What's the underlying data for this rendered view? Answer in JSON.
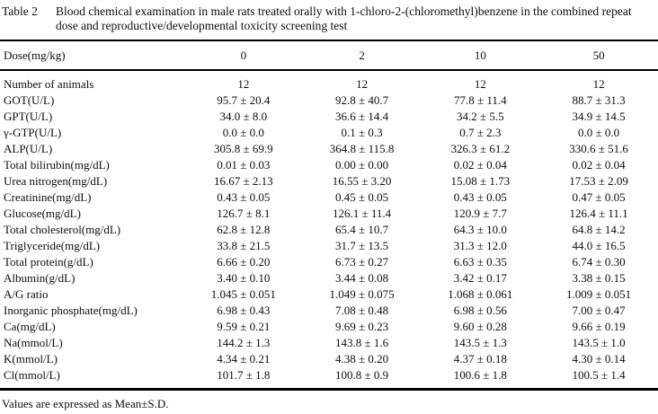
{
  "table": {
    "label": "Table 2",
    "caption": "Blood chemical examination in male rats treated orally with 1-chloro-2-(chloromethyl)benzene in the combined repeat dose and reproductive/developmental toxicity screening test",
    "header": {
      "label": "Dose(mg/kg)",
      "columns": [
        "0",
        "2",
        "10",
        "50"
      ]
    },
    "rows": [
      {
        "label": "Number of animals",
        "values": [
          "12",
          "12",
          "12",
          "12"
        ]
      },
      {
        "label": "GOT(U/L)",
        "values": [
          "95.7 ± 20.4",
          "92.8 ± 40.7",
          "77.8 ± 11.4",
          "88.7 ± 31.3"
        ]
      },
      {
        "label": "GPT(U/L)",
        "values": [
          "34.0 ± 8.0",
          "36.6 ± 14.4",
          "34.2 ± 5.5",
          "34.9 ± 14.5"
        ]
      },
      {
        "label": "γ-GTP(U/L)",
        "values": [
          "0.0 ± 0.0",
          "0.1 ± 0.3",
          "0.7 ± 2.3",
          "0.0 ± 0.0"
        ]
      },
      {
        "label": "ALP(U/L)",
        "values": [
          "305.8 ± 69.9",
          "364.8 ± 115.8",
          "326.3 ± 61.2",
          "330.6 ± 51.6"
        ]
      },
      {
        "label": "Total bilirubin(mg/dL)",
        "values": [
          "0.01 ± 0.03",
          "0.00 ± 0.00",
          "0.02 ± 0.04",
          "0.02 ± 0.04"
        ]
      },
      {
        "label": "Urea nitrogen(mg/dL)",
        "values": [
          "16.67 ± 2.13",
          "16.55 ± 3.20",
          "15.08 ± 1.73",
          "17.53 ± 2.09"
        ]
      },
      {
        "label": "Creatinine(mg/dL)",
        "values": [
          "0.43 ± 0.05",
          "0.45 ± 0.05",
          "0.43 ± 0.05",
          "0.47 ± 0.05"
        ]
      },
      {
        "label": "Glucose(mg/dL)",
        "values": [
          "126.7 ± 8.1",
          "126.1 ± 11.4",
          "120.9 ± 7.7",
          "126.4 ± 11.1"
        ]
      },
      {
        "label": "Total cholesterol(mg/dL)",
        "values": [
          "62.8 ± 12.8",
          "65.4 ± 10.7",
          "64.3 ± 10.0",
          "64.8 ± 14.2"
        ]
      },
      {
        "label": "Triglyceride(mg/dL)",
        "values": [
          "33.8 ± 21.5",
          "31.7 ± 13.5",
          "31.3 ± 12.0",
          "44.0 ± 16.5"
        ]
      },
      {
        "label": "Total protein(g/dL)",
        "values": [
          "6.66 ± 0.20",
          "6.73 ± 0.27",
          "6.63 ± 0.35",
          "6.74 ± 0.30"
        ]
      },
      {
        "label": "Albumin(g/dL)",
        "values": [
          "3.40 ± 0.10",
          "3.44 ± 0.08",
          "3.42 ± 0.17",
          "3.38 ± 0.15"
        ]
      },
      {
        "label": "A/G ratio",
        "values": [
          "1.045 ± 0.051",
          "1.049 ± 0.075",
          "1.068 ± 0.061",
          "1.009 ± 0.051"
        ]
      },
      {
        "label": "Inorganic phosphate(mg/dL)",
        "values": [
          "6.98 ± 0.43",
          "7.08 ± 0.48",
          "6.98 ± 0.56",
          "7.00 ± 0.47"
        ]
      },
      {
        "label": "Ca(mg/dL)",
        "values": [
          "9.59 ± 0.21",
          "9.69 ± 0.23",
          "9.60 ± 0.28",
          "9.66 ± 0.19"
        ]
      },
      {
        "label": "Na(mmol/L)",
        "values": [
          "144.2 ± 1.3",
          "143.8 ± 1.6",
          "143.5 ± 1.3",
          "143.5 ± 1.0"
        ]
      },
      {
        "label": "K(mmol/L)",
        "values": [
          "4.34 ± 0.21",
          "4.38 ± 0.20",
          "4.37 ± 0.18",
          "4.30 ± 0.14"
        ]
      },
      {
        "label": "Cl(mmol/L)",
        "values": [
          "101.7 ± 1.8",
          "100.8 ± 0.9",
          "100.6 ± 1.8",
          "100.5 ± 1.4"
        ]
      }
    ],
    "footnote": "Values are expressed as Mean±S.D."
  }
}
